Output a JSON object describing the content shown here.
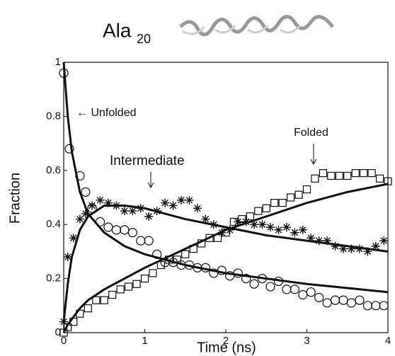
{
  "chart_data": {
    "type": "scatter",
    "title": "Ala",
    "title_subscript": "20",
    "xlabel": "Time (ns)",
    "ylabel": "Fraction",
    "xlim": [
      0,
      4
    ],
    "ylim": [
      0,
      1
    ],
    "xticks": [
      0,
      1,
      2,
      3,
      4
    ],
    "yticks": [
      0,
      0.2,
      0.4,
      0.6,
      0.8,
      1
    ],
    "annotations": [
      "← Unfolded",
      "Intermediate",
      "Folded"
    ],
    "color": "#111111",
    "series": [
      {
        "marker": "circle",
        "x": [
          0,
          0.07,
          0.2,
          0.27,
          0.35,
          0.45,
          0.55,
          0.65,
          0.75,
          0.85,
          0.95,
          1.05,
          1.15,
          1.25,
          1.35,
          1.45,
          1.55,
          1.65,
          1.75,
          1.85,
          1.95,
          2.05,
          2.15,
          2.25,
          2.35,
          2.45,
          2.55,
          2.65,
          2.75,
          2.85,
          2.95,
          3.05,
          3.15,
          3.25,
          3.35,
          3.45,
          3.55,
          3.65,
          3.75,
          3.85,
          3.95
        ],
        "values": [
          0.96,
          0.68,
          0.58,
          0.52,
          0.46,
          0.41,
          0.39,
          0.38,
          0.38,
          0.37,
          0.34,
          0.34,
          0.29,
          0.26,
          0.26,
          0.25,
          0.25,
          0.24,
          0.24,
          0.22,
          0.23,
          0.21,
          0.22,
          0.2,
          0.18,
          0.2,
          0.17,
          0.19,
          0.16,
          0.16,
          0.14,
          0.15,
          0.13,
          0.11,
          0.12,
          0.12,
          0.11,
          0.12,
          0.1,
          0.1,
          0.1
        ]
      },
      {
        "marker": "asterisk",
        "x": [
          0,
          0.05,
          0.12,
          0.2,
          0.27,
          0.35,
          0.45,
          0.55,
          0.65,
          0.75,
          0.85,
          0.95,
          1.05,
          1.15,
          1.25,
          1.35,
          1.45,
          1.55,
          1.65,
          1.75,
          1.85,
          1.95,
          2.05,
          2.15,
          2.25,
          2.35,
          2.45,
          2.55,
          2.65,
          2.75,
          2.85,
          2.95,
          3.05,
          3.15,
          3.25,
          3.35,
          3.45,
          3.55,
          3.65,
          3.75,
          3.85,
          3.95
        ],
        "values": [
          0.04,
          0.28,
          0.35,
          0.42,
          0.44,
          0.47,
          0.49,
          0.48,
          0.47,
          0.45,
          0.45,
          0.46,
          0.43,
          0.45,
          0.48,
          0.47,
          0.49,
          0.49,
          0.46,
          0.42,
          0.4,
          0.37,
          0.38,
          0.41,
          0.41,
          0.4,
          0.4,
          0.39,
          0.38,
          0.39,
          0.37,
          0.38,
          0.35,
          0.34,
          0.34,
          0.32,
          0.31,
          0.31,
          0.31,
          0.3,
          0.32,
          0.34
        ]
      },
      {
        "marker": "square",
        "x": [
          0,
          0.05,
          0.12,
          0.2,
          0.3,
          0.4,
          0.5,
          0.6,
          0.7,
          0.8,
          0.9,
          1.0,
          1.1,
          1.2,
          1.3,
          1.4,
          1.5,
          1.6,
          1.7,
          1.8,
          1.9,
          2.0,
          2.1,
          2.2,
          2.3,
          2.4,
          2.5,
          2.6,
          2.7,
          2.8,
          2.9,
          3.0,
          3.1,
          3.2,
          3.3,
          3.4,
          3.5,
          3.6,
          3.7,
          3.8,
          3.9,
          4.0
        ],
        "values": [
          0,
          0.02,
          0.04,
          0.07,
          0.09,
          0.12,
          0.12,
          0.14,
          0.16,
          0.17,
          0.18,
          0.2,
          0.22,
          0.25,
          0.27,
          0.27,
          0.29,
          0.31,
          0.33,
          0.35,
          0.35,
          0.37,
          0.41,
          0.42,
          0.43,
          0.45,
          0.46,
          0.48,
          0.48,
          0.5,
          0.51,
          0.53,
          0.57,
          0.59,
          0.58,
          0.58,
          0.58,
          0.59,
          0.59,
          0.59,
          0.57,
          0.56
        ]
      },
      {
        "marker": "line",
        "x": [
          0,
          0.05,
          0.1,
          0.2,
          0.3,
          0.5,
          0.75,
          1,
          1.5,
          2,
          2.5,
          3,
          3.5,
          4
        ],
        "values": [
          1,
          0.8,
          0.67,
          0.52,
          0.44,
          0.37,
          0.32,
          0.29,
          0.25,
          0.22,
          0.2,
          0.18,
          0.165,
          0.15
        ]
      },
      {
        "marker": "line",
        "x": [
          0,
          0.05,
          0.1,
          0.2,
          0.3,
          0.5,
          0.75,
          1,
          1.5,
          2,
          2.5,
          3,
          3.5,
          4
        ],
        "values": [
          0.04,
          0.18,
          0.28,
          0.38,
          0.43,
          0.47,
          0.47,
          0.46,
          0.42,
          0.39,
          0.36,
          0.34,
          0.32,
          0.3
        ]
      },
      {
        "marker": "line",
        "x": [
          0,
          0.05,
          0.1,
          0.2,
          0.3,
          0.5,
          0.75,
          1,
          1.5,
          2,
          2.5,
          3,
          3.5,
          4
        ],
        "values": [
          0,
          0.03,
          0.05,
          0.09,
          0.12,
          0.16,
          0.2,
          0.24,
          0.31,
          0.38,
          0.43,
          0.48,
          0.52,
          0.55
        ]
      }
    ]
  }
}
